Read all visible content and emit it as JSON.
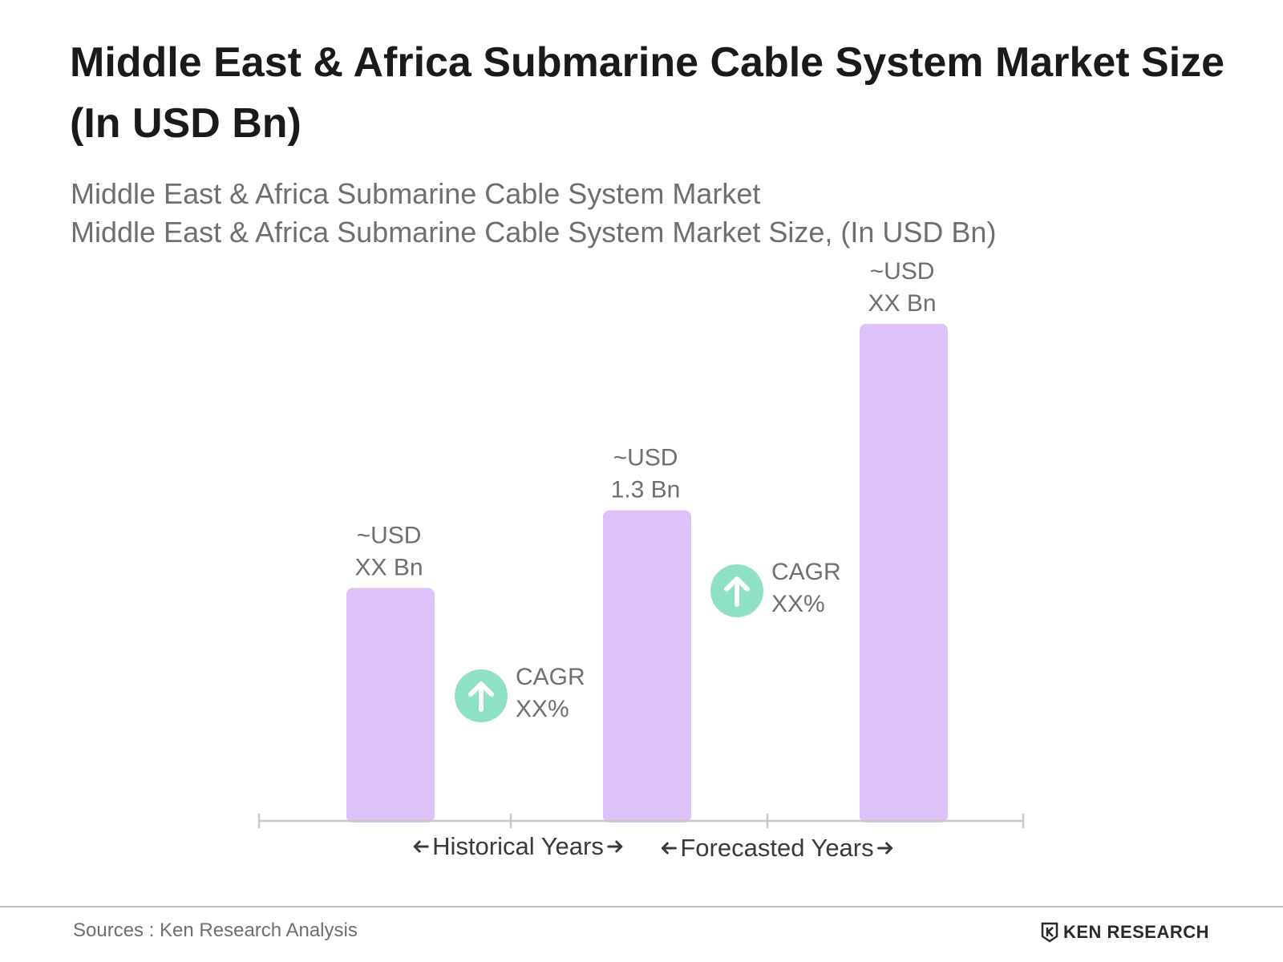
{
  "chart_data": {
    "type": "bar",
    "title": "Middle East & Africa Submarine Cable System Market Size (In USD Bn)",
    "subtitle_lines": [
      "Middle East & Africa Submarine Cable System Market",
      "Middle East & Africa Submarine Cable System Market Size, (In USD Bn)"
    ],
    "bars": [
      {
        "label_lines": [
          "~USD",
          "XX Bn"
        ],
        "value": 0.75
      },
      {
        "label_lines": [
          "~USD",
          "1.3 Bn"
        ],
        "value": 1.0
      },
      {
        "label_lines": [
          "~USD",
          "XX Bn"
        ],
        "value": 1.6
      }
    ],
    "ylim": [
      0,
      1.6
    ],
    "cagr_badges": [
      {
        "lines": [
          "CAGR",
          "XX%"
        ]
      },
      {
        "lines": [
          "CAGR",
          "XX%"
        ]
      }
    ],
    "period_labels": [
      "Historical Years",
      "Forecasted Years"
    ],
    "grid": false,
    "colors": {
      "bar": "#dcc2f6",
      "badge": "#8ee0c7",
      "axis": "#c8c8c8",
      "label": "#6f6f6f",
      "period": "#3a3a3a"
    }
  },
  "footer": {
    "source": "Sources : Ken Research Analysis",
    "brand": "KEN RESEARCH",
    "brand_icon": "ken-research-logo-icon"
  }
}
